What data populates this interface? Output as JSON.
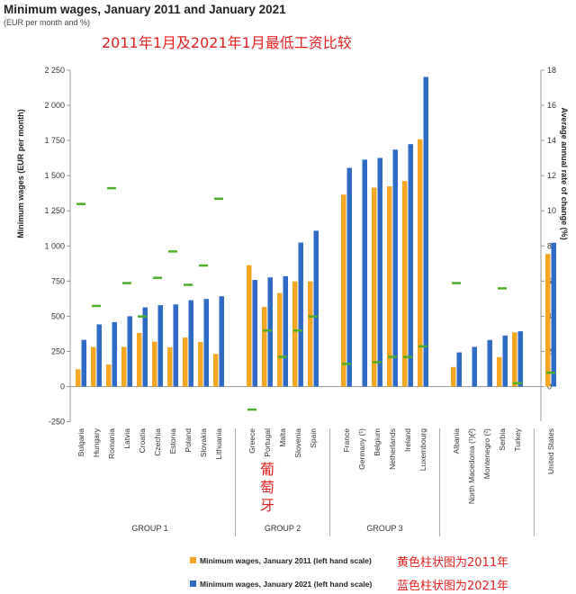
{
  "header": {
    "title": "Minimum wages, January 2011 and January 2021",
    "subtitle": "(EUR per month and %)",
    "annotation": "2011年1月及2021年1月最低工资比较"
  },
  "annotations": {
    "portugal_note": "葡萄牙",
    "legend_2011_note": "黄色柱状图为2011年",
    "legend_2021_note": "蓝色柱状图为2021年"
  },
  "colors": {
    "series_2011": "#f5a623",
    "series_2021": "#2e6bc4",
    "rate_marker": "#4caf28",
    "annotation_text": "#e21e1e"
  },
  "chart_data": {
    "type": "bar",
    "ylabel": "Minimum wages (EUR per month)",
    "y2label": "Average annual rate of change (%)",
    "ylim": [
      -250,
      2250
    ],
    "y2lim": [
      -2,
      18
    ],
    "yticks": [
      -250,
      0,
      250,
      500,
      750,
      1000,
      1250,
      1500,
      1750,
      2000,
      2250
    ],
    "yticklabels": [
      "-250",
      "0",
      "250",
      "500",
      "750",
      "1 000",
      "1 250",
      "1 500",
      "1 750",
      "2 000",
      "2 250"
    ],
    "y2ticks": [
      0,
      2,
      4,
      6,
      8,
      10,
      12,
      14,
      16,
      18
    ],
    "y2ticklabels": [
      "0",
      "2",
      "4",
      "6",
      "8",
      "10",
      "12",
      "14",
      "16",
      "18"
    ],
    "grid": false,
    "legend": "bottom",
    "categories": [
      "Bulgaria",
      "Hungary",
      "Romania",
      "Latvia",
      "Croatia",
      "Czechia",
      "Estonia",
      "Poland",
      "Slovakia",
      "Lithuania",
      "Greece",
      "Portugal",
      "Malta",
      "Slovenia",
      "Spain",
      "France",
      "Germany (¹)",
      "Belgium",
      "Netherlands",
      "Ireland",
      "Luxembourg",
      "Albania",
      "North Macedonia (¹)(²)",
      "Montenegro (²)",
      "Serbia",
      "Turkey",
      "United States"
    ],
    "groups": [
      {
        "name": "GROUP 1",
        "categories": [
          "Bulgaria",
          "Hungary",
          "Romania",
          "Latvia",
          "Croatia",
          "Czechia",
          "Estonia",
          "Poland",
          "Slovakia",
          "Lithuania"
        ]
      },
      {
        "name": "GROUP 2",
        "categories": [
          "Greece",
          "Portugal",
          "Malta",
          "Slovenia",
          "Spain"
        ]
      },
      {
        "name": "GROUP 3",
        "categories": [
          "France",
          "Germany (¹)",
          "Belgium",
          "Netherlands",
          "Ireland",
          "Luxembourg"
        ]
      },
      {
        "name": "",
        "categories": [
          "Albania",
          "North Macedonia (¹)(²)",
          "Montenegro (²)",
          "Serbia",
          "Turkey"
        ]
      },
      {
        "name": "",
        "categories": [
          "United States"
        ]
      }
    ],
    "series": [
      {
        "name": "Minimum wages, January 2011 (left hand scale)",
        "axis": "left",
        "kind": "bar",
        "values": [
          123,
          281,
          157,
          282,
          381,
          319,
          278,
          349,
          317,
          232,
          863,
          566,
          665,
          748,
          748,
          1365,
          null,
          1415,
          1424,
          1462,
          1758,
          139,
          null,
          null,
          209,
          385,
          943
        ]
      },
      {
        "name": "Minimum wages, January 2021 (left hand scale)",
        "axis": "left",
        "kind": "bar",
        "values": [
          332,
          442,
          458,
          500,
          563,
          579,
          584,
          614,
          623,
          642,
          758,
          776,
          785,
          1024,
          1108,
          1555,
          1614,
          1626,
          1685,
          1724,
          2202,
          243,
          282,
          331,
          363,
          393,
          1023
        ]
      },
      {
        "name": "Average annual rate of change",
        "axis": "right",
        "kind": "marker",
        "values": [
          10.4,
          4.6,
          11.3,
          5.9,
          4.0,
          6.2,
          7.7,
          5.8,
          6.9,
          10.7,
          -1.3,
          3.2,
          1.7,
          3.2,
          4.0,
          1.3,
          null,
          1.4,
          1.7,
          1.7,
          2.3,
          5.9,
          null,
          null,
          5.6,
          0.2,
          0.8
        ]
      }
    ]
  }
}
